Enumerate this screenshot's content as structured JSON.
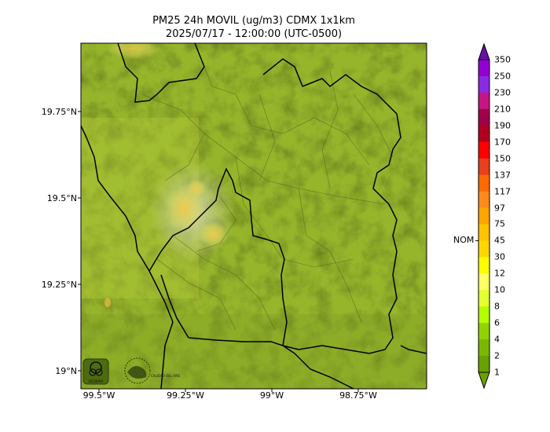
{
  "title_line1": "PM25 24h MOVIL (ug/m3) CDMX 1x1km",
  "title_line2": "2025/07/17 - 12:00:00 (UTC-0500)",
  "y_ticks": [
    "19.75°N",
    "19.5°N",
    "19.25°N",
    "19°N"
  ],
  "x_ticks": [
    "99.5°W",
    "99.25°W",
    "99°W",
    "98.75°W"
  ],
  "colorbar": {
    "levels": [
      "350",
      "250",
      "230",
      "210",
      "190",
      "170",
      "150",
      "137",
      "117",
      "97",
      "75",
      "45",
      "30",
      "12",
      "10",
      "8",
      "6",
      "4",
      "2",
      "1"
    ],
    "colors": [
      "#6a0dad",
      "#9400d3",
      "#8a2be2",
      "#c71585",
      "#a0004a",
      "#b00020",
      "#ff0000",
      "#e8401c",
      "#ff6a00",
      "#ff8c1a",
      "#ffa500",
      "#ffc400",
      "#ffd700",
      "#ffff00",
      "#ffff66",
      "#e6ff33",
      "#b3ff00",
      "#8fd400",
      "#7ab800",
      "#6aa000"
    ],
    "marker_label": "NOM"
  },
  "logos": {
    "left": "SEDEMA",
    "right": "CALIDAD DEL AIRE"
  }
}
